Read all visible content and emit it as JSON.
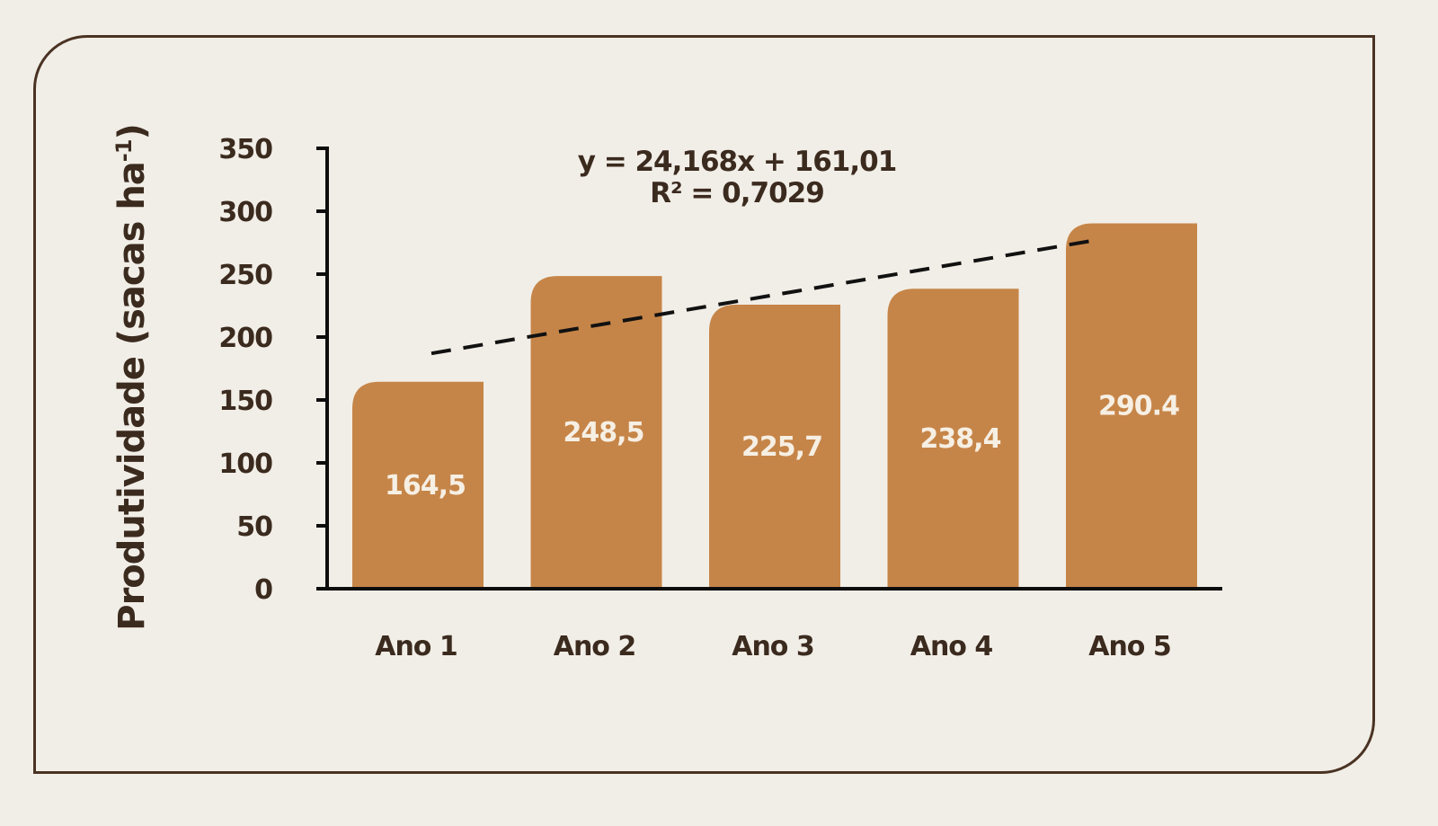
{
  "chart_data": {
    "type": "bar",
    "categories": [
      "Ano 1",
      "Ano 2",
      "Ano 3",
      "Ano 4",
      "Ano 5"
    ],
    "values": [
      164.5,
      248.5,
      225.7,
      238.4,
      290.4
    ],
    "value_labels": [
      "164,5",
      "248,5",
      "225,7",
      "238,4",
      "290.4"
    ],
    "ylabel": "Produtividade (sacas ha",
    "ylabel_superscript": "-1",
    "ylabel_close": ")",
    "ylim": [
      0,
      350
    ],
    "yticks": [
      0,
      50,
      100,
      150,
      200,
      250,
      300,
      350
    ],
    "trendline": {
      "slope": 24.168,
      "intercept": 161.01,
      "equation": "y = 24,168x + 161,01",
      "r_squared": "R² = 0,7029"
    },
    "grid": false,
    "legend": "none",
    "colors": {
      "bar": "#c68548",
      "axis": "#0d0d0d",
      "text": "#3b2a1e",
      "label": "#f6efe4",
      "trend": "#111111",
      "border": "#4a3323",
      "background": "#f1eee7"
    }
  }
}
